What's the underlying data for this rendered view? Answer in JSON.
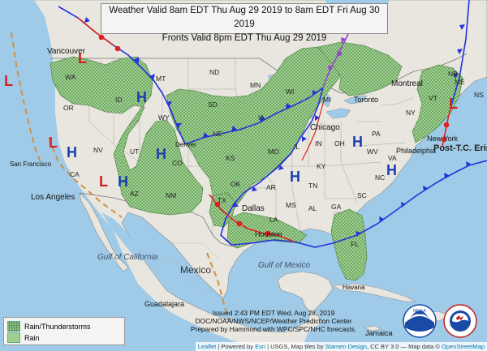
{
  "title": {
    "line1": "Weather Valid 8am EDT Thu Aug 29 2019 to 8am EDT Fri Aug 30 2019",
    "line2": "Fronts Valid 8pm EDT Thu Aug 29 2019"
  },
  "pressure_centers": {
    "high_symbol": "H",
    "low_symbol": "L"
  },
  "front_label": "Post-T.C. Erin",
  "places": {
    "cities": [
      "Vancouver",
      "San Francisco",
      "Los Angeles",
      "Denver",
      "Dallas",
      "Chicago",
      "Toronto",
      "Montreal",
      "New York",
      "Philadelphia",
      "Houston",
      "Havana",
      "Guadalajara",
      "Jamaica"
    ],
    "countries": [
      "Mexico"
    ],
    "waters": [
      "Gulf of California",
      "Gulf of Mexico"
    ],
    "states": [
      "WA",
      "OR",
      "CA",
      "NV",
      "ID",
      "MT",
      "WY",
      "UT",
      "AZ",
      "CO",
      "NM",
      "ND",
      "SD",
      "NE",
      "KS",
      "OK",
      "TX",
      "MN",
      "IA",
      "MO",
      "AR",
      "LA",
      "WI",
      "IL",
      "MI",
      "IN",
      "OH",
      "KY",
      "TN",
      "MS",
      "AL",
      "GA",
      "FL",
      "SC",
      "NC",
      "VA",
      "WV",
      "PA",
      "NY",
      "VT",
      "ME",
      "NB",
      "NS"
    ]
  },
  "legend": {
    "items": [
      {
        "label": "Rain/Thunderstorms",
        "color": "#93c48a"
      },
      {
        "label": "Rain",
        "color": "#9fd08f"
      }
    ]
  },
  "issued": {
    "line1": "Issued 2:43 PM EDT Wed, Aug 28, 2019",
    "line2": "DOC/NOAA/NWS/NCEP/Weather Prediction Center",
    "line3": "Prepared by Hammond with WPC/SPC/NHC forecasts."
  },
  "attribution": {
    "leaflet": "Leaflet",
    "powered": "| Powered by",
    "esri": "Esri",
    "rest": "| USGS, Map tiles by",
    "stamen": "Stamen Design",
    "license": ", CC BY 3.0 — Map data ©",
    "osm": "OpenStreetMap"
  },
  "logos": {
    "noaa": "NOAA",
    "nws": "NATIONAL WEATHER SERVICE"
  },
  "colors": {
    "cold_front": "#2233dd",
    "warm_front": "#e02020",
    "trough": "#d09040",
    "occluded": "#9944cc",
    "high": "#1a3fb5",
    "low": "#d42020",
    "land": "#e9e6df",
    "water": "#9fcbe8"
  }
}
